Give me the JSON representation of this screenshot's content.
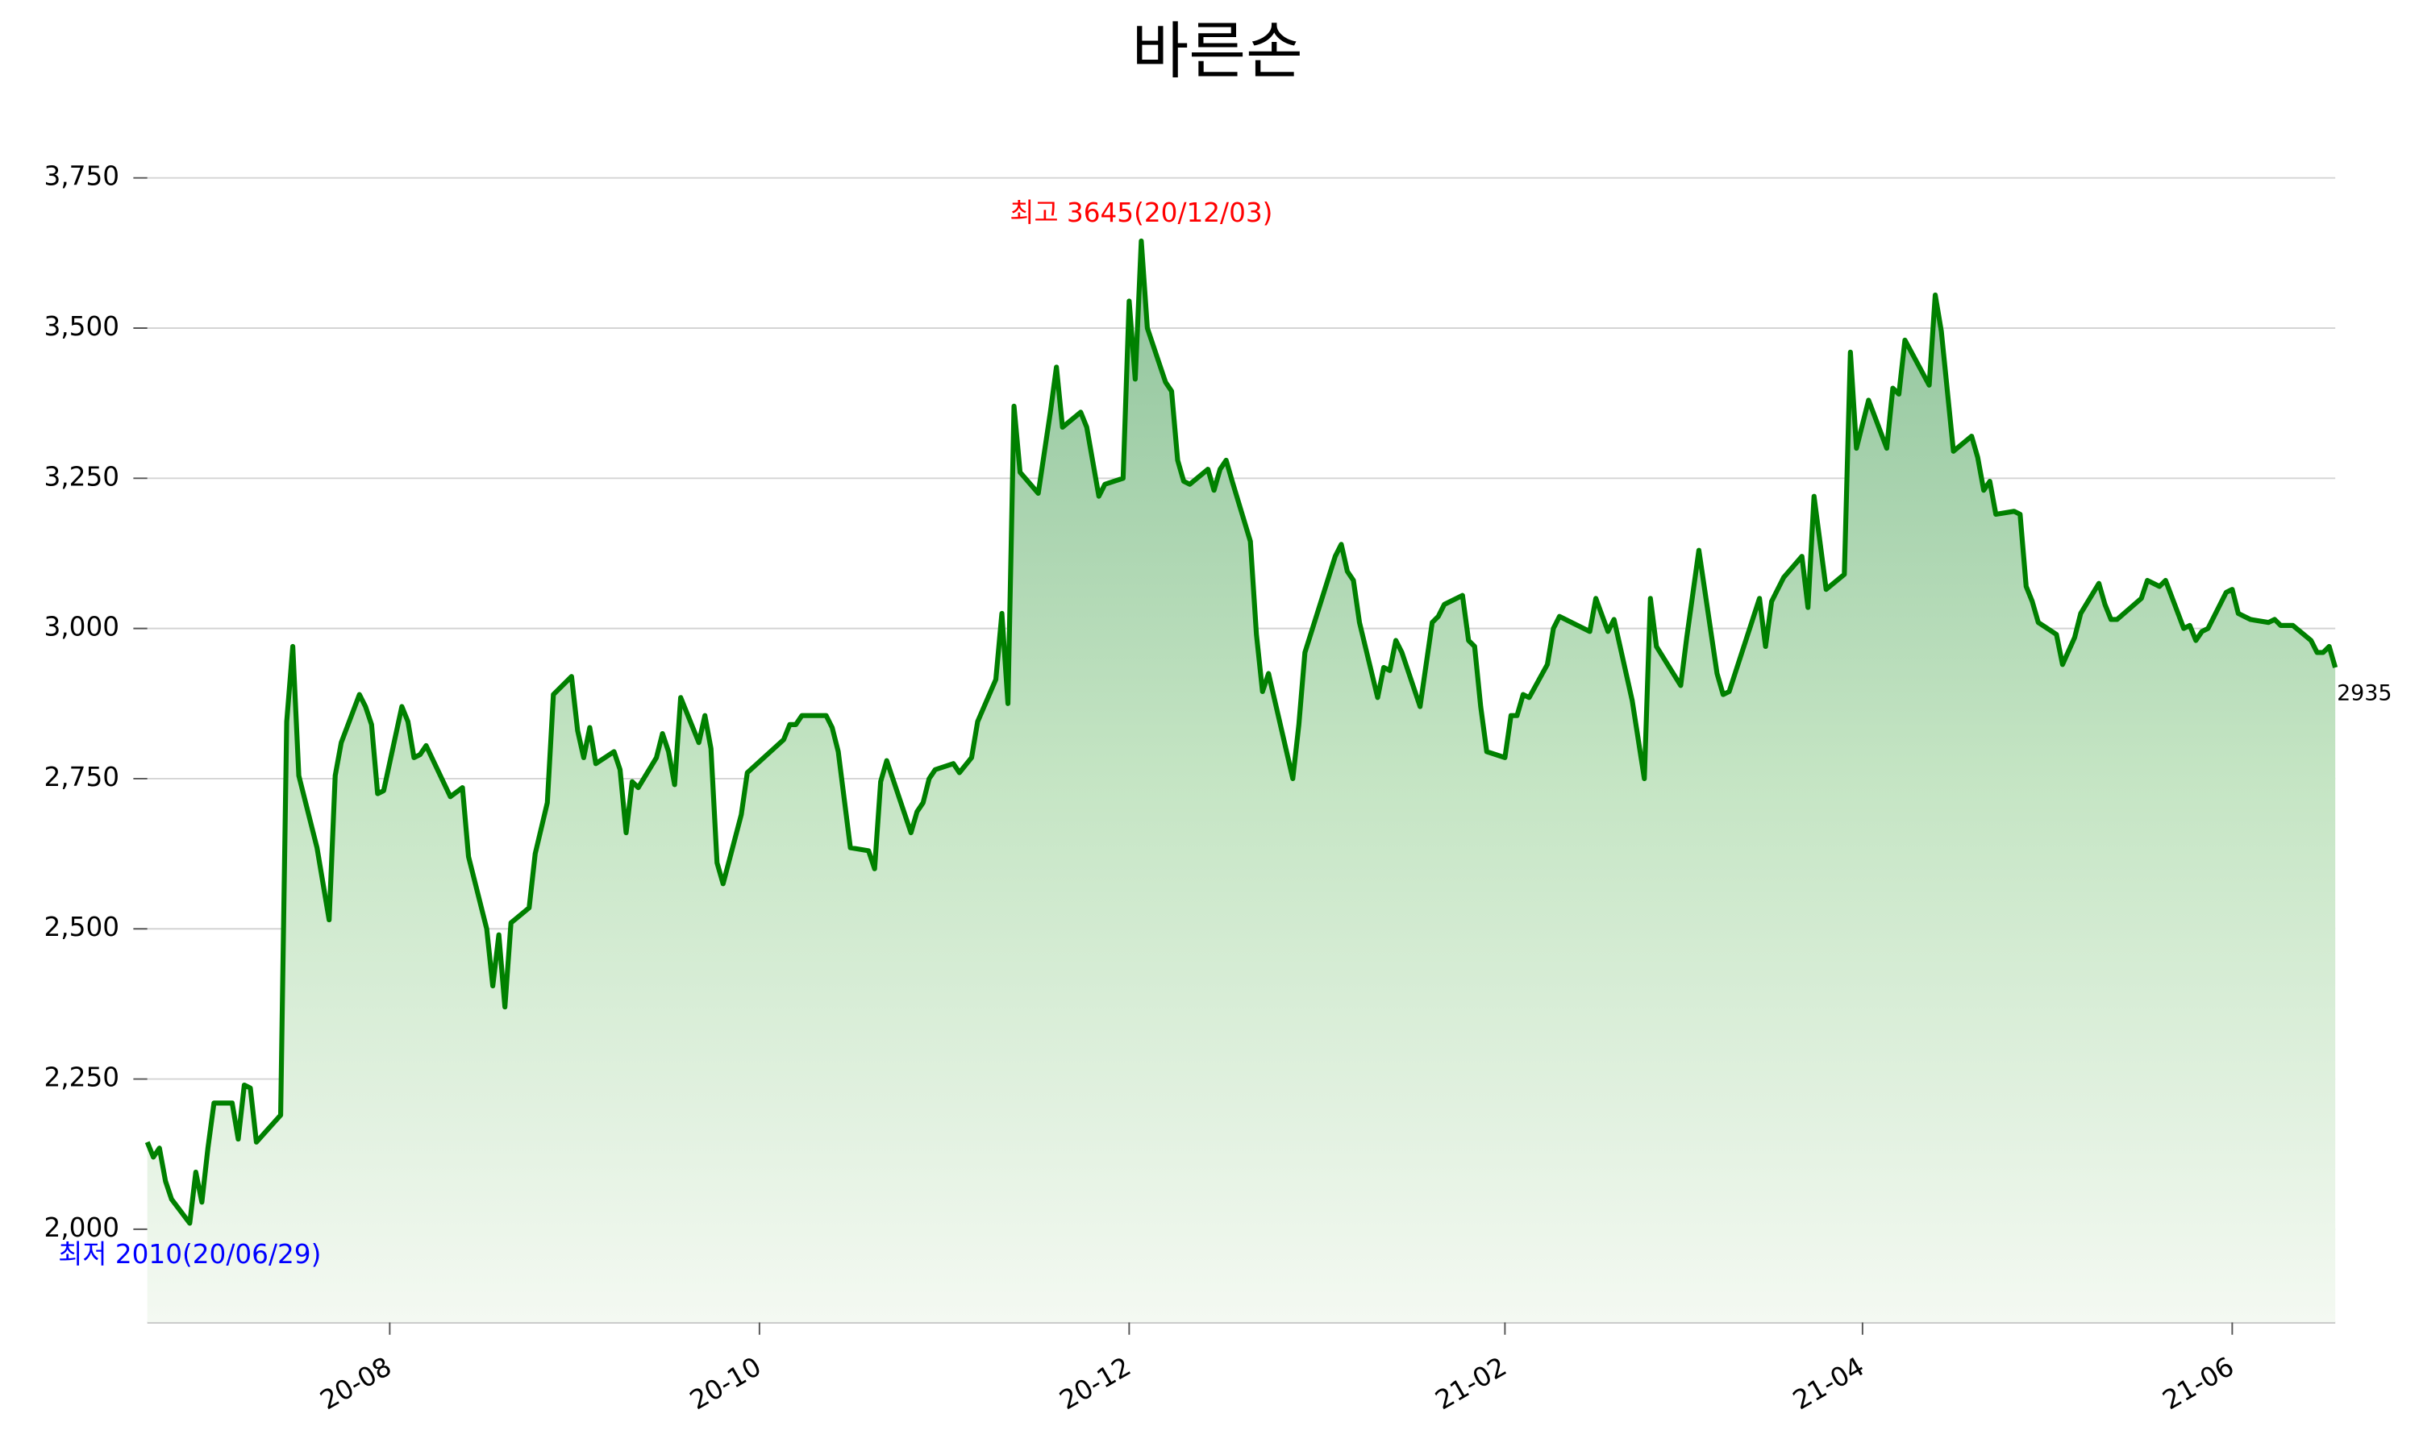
{
  "chart_data": {
    "type": "line",
    "title": "바른손",
    "x": [
      "2020-06-22",
      "2020-06-23",
      "2020-06-24",
      "2020-06-25",
      "2020-06-26",
      "2020-06-29",
      "2020-06-30",
      "2020-07-01",
      "2020-07-02",
      "2020-07-03",
      "2020-07-06",
      "2020-07-07",
      "2020-07-08",
      "2020-07-09",
      "2020-07-10",
      "2020-07-14",
      "2020-07-15",
      "2020-07-16",
      "2020-07-17",
      "2020-07-20",
      "2020-07-22",
      "2020-07-23",
      "2020-07-24",
      "2020-07-27",
      "2020-07-28",
      "2020-07-29",
      "2020-07-30",
      "2020-07-31",
      "2020-08-03",
      "2020-08-04",
      "2020-08-05",
      "2020-08-06",
      "2020-08-07",
      "2020-08-11",
      "2020-08-13",
      "2020-08-14",
      "2020-08-17",
      "2020-08-18",
      "2020-08-19",
      "2020-08-20",
      "2020-08-21",
      "2020-08-24",
      "2020-08-25",
      "2020-08-27",
      "2020-08-28",
      "2020-08-31",
      "2020-09-01",
      "2020-09-02",
      "2020-09-03",
      "2020-09-04",
      "2020-09-07",
      "2020-09-08",
      "2020-09-09",
      "2020-09-10",
      "2020-09-11",
      "2020-09-14",
      "2020-09-15",
      "2020-09-16",
      "2020-09-17",
      "2020-09-18",
      "2020-09-21",
      "2020-09-22",
      "2020-09-23",
      "2020-09-24",
      "2020-09-25",
      "2020-09-28",
      "2020-09-29",
      "2020-10-05",
      "2020-10-06",
      "2020-10-07",
      "2020-10-08",
      "2020-10-12",
      "2020-10-13",
      "2020-10-14",
      "2020-10-16",
      "2020-10-19",
      "2020-10-20",
      "2020-10-21",
      "2020-10-22",
      "2020-10-26",
      "2020-10-27",
      "2020-10-28",
      "2020-10-29",
      "2020-10-30",
      "2020-11-02",
      "2020-11-03",
      "2020-11-05",
      "2020-11-06",
      "2020-11-09",
      "2020-11-10",
      "2020-11-11",
      "2020-11-12",
      "2020-11-13",
      "2020-11-16",
      "2020-11-18",
      "2020-11-19",
      "2020-11-20",
      "2020-11-23",
      "2020-11-24",
      "2020-11-26",
      "2020-11-27",
      "2020-11-30",
      "2020-12-01",
      "2020-12-02",
      "2020-12-03",
      "2020-12-04",
      "2020-12-07",
      "2020-12-08",
      "2020-12-09",
      "2020-12-10",
      "2020-12-11",
      "2020-12-14",
      "2020-12-15",
      "2020-12-16",
      "2020-12-17",
      "2020-12-18",
      "2020-12-21",
      "2020-12-22",
      "2020-12-23",
      "2020-12-24",
      "2020-12-28",
      "2020-12-29",
      "2020-12-30",
      "2021-01-04",
      "2021-01-05",
      "2021-01-06",
      "2021-01-07",
      "2021-01-08",
      "2021-01-11",
      "2021-01-12",
      "2021-01-13",
      "2021-01-14",
      "2021-01-15",
      "2021-01-18",
      "2021-01-20",
      "2021-01-21",
      "2021-01-22",
      "2021-01-25",
      "2021-01-26",
      "2021-01-27",
      "2021-01-28",
      "2021-01-29",
      "2021-02-01",
      "2021-02-02",
      "2021-02-03",
      "2021-02-04",
      "2021-02-05",
      "2021-02-08",
      "2021-02-09",
      "2021-02-10",
      "2021-02-15",
      "2021-02-16",
      "2021-02-18",
      "2021-02-19",
      "2021-02-22",
      "2021-02-24",
      "2021-02-25",
      "2021-02-26",
      "2021-03-02",
      "2021-03-03",
      "2021-03-05",
      "2021-03-08",
      "2021-03-09",
      "2021-03-10",
      "2021-03-15",
      "2021-03-16",
      "2021-03-17",
      "2021-03-18",
      "2021-03-19",
      "2021-03-22",
      "2021-03-23",
      "2021-03-24",
      "2021-03-26",
      "2021-03-29",
      "2021-03-30",
      "2021-03-31",
      "2021-04-02",
      "2021-04-05",
      "2021-04-06",
      "2021-04-07",
      "2021-04-08",
      "2021-04-12",
      "2021-04-13",
      "2021-04-14",
      "2021-04-16",
      "2021-04-19",
      "2021-04-20",
      "2021-04-21",
      "2021-04-22",
      "2021-04-23",
      "2021-04-26",
      "2021-04-27",
      "2021-04-28",
      "2021-04-29",
      "2021-04-30",
      "2021-05-03",
      "2021-05-04",
      "2021-05-06",
      "2021-05-07",
      "2021-05-10",
      "2021-05-11",
      "2021-05-12",
      "2021-05-13",
      "2021-05-17",
      "2021-05-18",
      "2021-05-20",
      "2021-05-21",
      "2021-05-24",
      "2021-05-25",
      "2021-05-26",
      "2021-05-27",
      "2021-05-28",
      "2021-05-31",
      "2021-06-01",
      "2021-06-02",
      "2021-06-04",
      "2021-06-07",
      "2021-06-08",
      "2021-06-09",
      "2021-06-11",
      "2021-06-14",
      "2021-06-15",
      "2021-06-16",
      "2021-06-17",
      "2021-06-18"
    ],
    "series": [
      {
        "name": "바른손",
        "color": "#008000",
        "values": [
          2145,
          2120,
          2135,
          2080,
          2050,
          2010,
          2095,
          2045,
          2135,
          2210,
          2210,
          2150,
          2240,
          2235,
          2145,
          2190,
          2845,
          2970,
          2755,
          2635,
          2515,
          2755,
          2810,
          2890,
          2870,
          2840,
          2725,
          2730,
          2870,
          2845,
          2785,
          2790,
          2805,
          2720,
          2735,
          2620,
          2500,
          2405,
          2490,
          2370,
          2510,
          2535,
          2625,
          2710,
          2890,
          2920,
          2830,
          2785,
          2835,
          2775,
          2795,
          2765,
          2660,
          2745,
          2735,
          2785,
          2825,
          2795,
          2740,
          2885,
          2810,
          2855,
          2800,
          2610,
          2575,
          2690,
          2760,
          2815,
          2840,
          2840,
          2855,
          2855,
          2835,
          2795,
          2635,
          2630,
          2600,
          2745,
          2780,
          2660,
          2695,
          2710,
          2750,
          2765,
          2775,
          2760,
          2785,
          2845,
          2915,
          3025,
          2875,
          3370,
          3260,
          3225,
          3360,
          3435,
          3335,
          3360,
          3335,
          3220,
          3240,
          3250,
          3545,
          3415,
          3645,
          3500,
          3410,
          3395,
          3280,
          3245,
          3240,
          3265,
          3230,
          3265,
          3280,
          3245,
          3145,
          2990,
          2895,
          2925,
          2750,
          2840,
          2960,
          3120,
          3140,
          3095,
          3080,
          3010,
          2885,
          2935,
          2930,
          2980,
          2960,
          2870,
          3010,
          3020,
          3040,
          3055,
          2980,
          2970,
          2870,
          2795,
          2785,
          2855,
          2855,
          2890,
          2885,
          2940,
          3000,
          3020,
          2995,
          3050,
          2995,
          3015,
          2880,
          2750,
          3050,
          2970,
          2905,
          2985,
          3130,
          2925,
          2890,
          2895,
          3050,
          2970,
          3045,
          3065,
          3085,
          3120,
          3035,
          3220,
          3065,
          3090,
          3460,
          3300,
          3380,
          3300,
          3400,
          3390,
          3480,
          3405,
          3555,
          3495,
          3295,
          3320,
          3285,
          3230,
          3245,
          3190,
          3195,
          3190,
          3070,
          3045,
          3010,
          2990,
          2940,
          2985,
          3025,
          3075,
          3040,
          3015,
          3015,
          3050,
          3080,
          3070,
          3080,
          3000,
          3005,
          2980,
          2995,
          3000,
          3060,
          3065,
          3025,
          3015,
          3010,
          3015,
          3005,
          3005,
          2980,
          2960,
          2960,
          2970,
          2935
        ]
      }
    ],
    "xlim": [
      "2020-06-22",
      "2021-06-18"
    ],
    "xticks": [
      {
        "value": "2020-08-01",
        "label": "20-08"
      },
      {
        "value": "2020-10-01",
        "label": "20-10"
      },
      {
        "value": "2020-12-01",
        "label": "20-12"
      },
      {
        "value": "2021-02-01",
        "label": "21-02"
      },
      {
        "value": "2021-04-01",
        "label": "21-04"
      },
      {
        "value": "2021-06-01",
        "label": "21-06"
      }
    ],
    "ylim": [
      1845,
      3850
    ],
    "yticks": [
      {
        "value": 2000,
        "label": "2,000"
      },
      {
        "value": 2250,
        "label": "2,250"
      },
      {
        "value": 2500,
        "label": "2,500"
      },
      {
        "value": 2750,
        "label": "2,750"
      },
      {
        "value": 3000,
        "label": "3,000"
      },
      {
        "value": 3250,
        "label": "3,250"
      },
      {
        "value": 3500,
        "label": "3,500"
      },
      {
        "value": 3750,
        "label": "3,750"
      }
    ],
    "grid": true,
    "area_fill": true,
    "annotations": [
      {
        "text": "최고 3645(20/12/03)",
        "color": "#ff0000",
        "x": "2020-12-03",
        "y": 3645,
        "placement": "above"
      },
      {
        "text": "최저 2010(20/06/29)",
        "color": "#0000ff",
        "x": "2020-06-29",
        "y": 2010,
        "placement": "below"
      },
      {
        "text": "2935",
        "color": "#000000",
        "x": "2021-06-18",
        "y": 2935,
        "placement": "right"
      }
    ]
  }
}
